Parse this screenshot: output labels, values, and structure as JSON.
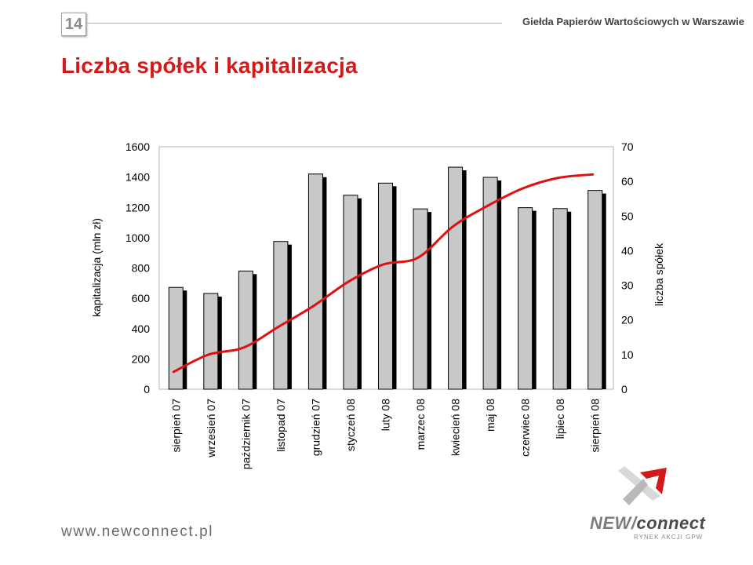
{
  "header": {
    "page_number": "14",
    "organization": "Giełda Papierów Wartościowych w Warszawie"
  },
  "slide_title": "Liczba spółek i kapitalizacja",
  "colors": {
    "title": "#d21a1a",
    "bar_fill": "#c8c8c8",
    "bar_shadow": "#000000",
    "line": "#e01010"
  },
  "chart_data": {
    "type": "bar",
    "combo": "bar + line (dual axis)",
    "categories": [
      "sierpień 07",
      "wrzesień 07",
      "październik 07",
      "listopad 07",
      "grudzień 07",
      "styczeń 08",
      "luty 08",
      "marzec 08",
      "kwiecień 08",
      "maj 08",
      "czerwiec 08",
      "lipiec 08",
      "sierpień 08"
    ],
    "series": [
      {
        "name": "kapitalizacja (mln zł)",
        "axis": "left",
        "type": "bar",
        "values": [
          672,
          632,
          780,
          975,
          1420,
          1280,
          1360,
          1190,
          1465,
          1398,
          1198,
          1192,
          1312
        ]
      },
      {
        "name": "liczba spółek",
        "axis": "right",
        "type": "line",
        "values": [
          5,
          10,
          12,
          18,
          24,
          31,
          36,
          38,
          47,
          53,
          58,
          61,
          62
        ]
      }
    ],
    "ylabel": "kapitalizacja (mln zł)",
    "y2label": "liczba spółek",
    "ylim": [
      0,
      1600
    ],
    "y2lim": [
      0,
      70
    ],
    "yticks": [
      "0",
      "200",
      "400",
      "600",
      "800",
      "1000",
      "1200",
      "1400",
      "1600"
    ],
    "y2ticks": [
      "0",
      "10",
      "20",
      "30",
      "40",
      "50",
      "60",
      "70"
    ],
    "grid": false,
    "legend": "none"
  },
  "footer": {
    "url": "www.newconnect.pl",
    "logo_part1": "NEW/",
    "logo_part2": "connect",
    "logo_tagline": "RYNEK AKCJI GPW"
  }
}
